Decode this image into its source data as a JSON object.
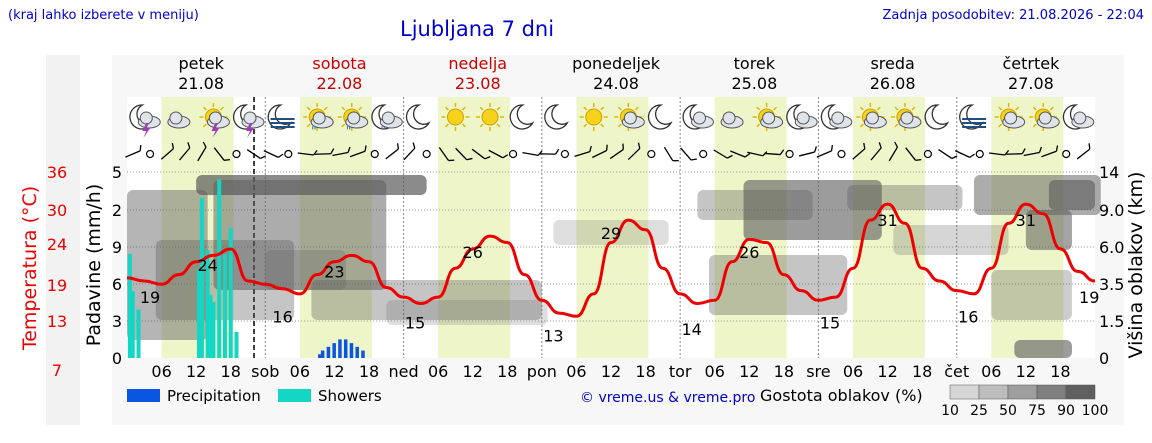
{
  "header": {
    "location_hint": "(kraj lahko izberete v meniju)",
    "title": "Ljubljana 7 dni",
    "updated": "Zadnja posodobitev: 21.08.2026 - 22:04"
  },
  "credit": "© vreme.us & vreme.pro",
  "colors": {
    "temperature": "#ee0000",
    "precipitation": "#0a56e0",
    "showers": "#14d6c4",
    "weekend": "#cc0000",
    "day_band": "#eef5c8",
    "link": "#0000cc"
  },
  "days": [
    {
      "name": "petek",
      "date": "21.08",
      "abbr": "",
      "weekend": false
    },
    {
      "name": "sobota",
      "date": "22.08",
      "abbr": "sob",
      "weekend": true
    },
    {
      "name": "nedelja",
      "date": "23.08",
      "abbr": "ned",
      "weekend": true
    },
    {
      "name": "ponedeljek",
      "date": "24.08",
      "abbr": "pon",
      "weekend": false
    },
    {
      "name": "torek",
      "date": "25.08",
      "abbr": "tor",
      "weekend": false
    },
    {
      "name": "sreda",
      "date": "26.08",
      "abbr": "sre",
      "weekend": false
    },
    {
      "name": "četrtek",
      "date": "27.08",
      "abbr": "čet",
      "weekend": false
    }
  ],
  "hour_ticks": [
    "06",
    "12",
    "18"
  ],
  "icons": [
    [
      "moon-thunder-icon",
      "cloudy-icon",
      "sun-thunder-icon",
      "moon-thunder-icon"
    ],
    [
      "moon-fog-icon",
      "sun-drizzle-icon",
      "sun-drizzle-icon",
      "moon-drizzle-icon"
    ],
    [
      "moon-icon",
      "sun-icon",
      "sun-icon",
      "moon-icon"
    ],
    [
      "moon-icon",
      "sun-icon",
      "sun-cloud-icon",
      "moon-icon"
    ],
    [
      "moon-cloud-icon",
      "cloudy-icon",
      "sun-cloud-icon",
      "moon-cloud-icon"
    ],
    [
      "moon-cloud-icon",
      "sun-cloud-icon",
      "sun-cloud-icon",
      "moon-icon"
    ],
    [
      "moon-fog-icon",
      "sun-cloud-icon",
      "sun-cloud-icon",
      "moon-cloud-icon"
    ]
  ],
  "chart_data": {
    "type": "line",
    "y_left_temperature": {
      "label": "Temperatura (°C)",
      "ticks": [
        "7",
        "13",
        "19",
        "24",
        "30",
        "36"
      ],
      "range": [
        7,
        36
      ]
    },
    "y_left_precipitation": {
      "label": "Padavine (mm/h)",
      "ticks": [
        "0",
        "3",
        "6",
        "9",
        "2",
        "5"
      ]
    },
    "y_right_clouds": {
      "label": "Višina oblakov (km)",
      "ticks": [
        "0",
        "1.5",
        "3.5",
        "6.0",
        "9.0",
        "14"
      ]
    },
    "temperature": {
      "hours": [
        0,
        3,
        6,
        9,
        12,
        15,
        18,
        21,
        24,
        27,
        30,
        33,
        36,
        39,
        42,
        45,
        48,
        51,
        54,
        57,
        60,
        63,
        66,
        69,
        72,
        75,
        78,
        81,
        84,
        87,
        90,
        93,
        96,
        99,
        102,
        105,
        108,
        111,
        114,
        117,
        120,
        123,
        126,
        129,
        132,
        135,
        138,
        141,
        144,
        147,
        150,
        153,
        156,
        159,
        162,
        165,
        168
      ],
      "values": [
        19.5,
        19,
        18.5,
        20,
        22,
        23,
        24,
        19,
        18.5,
        17.8,
        17,
        20,
        22,
        23,
        22,
        18,
        16.5,
        15.5,
        16.5,
        21,
        24,
        26,
        25,
        20,
        16,
        14,
        13.5,
        17,
        25,
        28.5,
        27,
        21,
        17,
        15.5,
        16,
        22,
        25.5,
        25,
        20,
        17.5,
        16,
        16.5,
        21,
        28.5,
        31,
        28,
        21,
        19,
        17.5,
        17,
        21,
        28,
        31,
        29.5,
        24,
        20.5,
        19
      ],
      "labels": [
        {
          "hour": 4,
          "value": "19"
        },
        {
          "hour": 14,
          "value": "24"
        },
        {
          "hour": 27,
          "value": "16"
        },
        {
          "hour": 36,
          "value": "23"
        },
        {
          "hour": 50,
          "value": "15"
        },
        {
          "hour": 60,
          "value": "26"
        },
        {
          "hour": 74,
          "value": "13"
        },
        {
          "hour": 84,
          "value": "29"
        },
        {
          "hour": 98,
          "value": "14"
        },
        {
          "hour": 108,
          "value": "26"
        },
        {
          "hour": 122,
          "value": "15"
        },
        {
          "hour": 132,
          "value": "31"
        },
        {
          "hour": 146,
          "value": "16"
        },
        {
          "hour": 156,
          "value": "31"
        },
        {
          "hour": 167,
          "value": "19"
        }
      ]
    },
    "showers_mm": [
      {
        "hour": 0.5,
        "value": 2.8
      },
      {
        "hour": 1,
        "value": 1.8
      },
      {
        "hour": 2,
        "value": 1.3
      },
      {
        "hour": 12.5,
        "value": 2.4
      },
      {
        "hour": 13,
        "value": 4.3
      },
      {
        "hour": 14,
        "value": 2.9
      },
      {
        "hour": 14.5,
        "value": 1.7
      },
      {
        "hour": 15,
        "value": 1.5
      },
      {
        "hour": 16,
        "value": 4.8
      },
      {
        "hour": 17,
        "value": 2.8
      },
      {
        "hour": 18,
        "value": 3.5
      },
      {
        "hour": 19,
        "value": 0.7
      }
    ],
    "precipitation_mm": [
      {
        "hour": 33.5,
        "value": 0.1
      },
      {
        "hour": 34,
        "value": 0.2
      },
      {
        "hour": 35,
        "value": 0.3
      },
      {
        "hour": 36,
        "value": 0.4
      },
      {
        "hour": 37,
        "value": 0.5
      },
      {
        "hour": 38,
        "value": 0.5
      },
      {
        "hour": 39,
        "value": 0.4
      },
      {
        "hour": 40,
        "value": 0.3
      },
      {
        "hour": 41,
        "value": 0.2
      }
    ],
    "legend": [
      {
        "name": "Precipitation",
        "color": "#0a56e0"
      },
      {
        "name": "Showers",
        "color": "#14d6c4"
      }
    ],
    "cloud_scale": {
      "label": "Gostota oblakov (%)",
      "steps": [
        "10",
        "25",
        "50",
        "75",
        "90",
        "100"
      ]
    }
  }
}
